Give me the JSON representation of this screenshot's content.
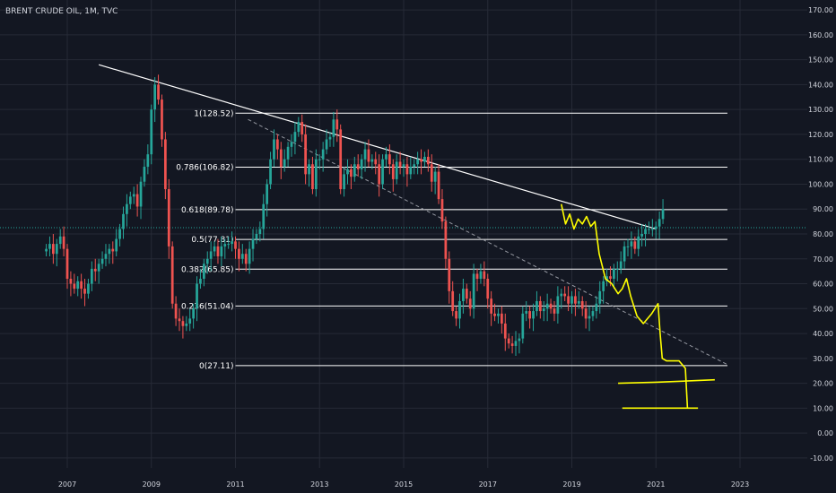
{
  "title": "BRENT CRUDE OIL, 1M, TVC",
  "colors": {
    "background": "#131722",
    "grid": "#262a36",
    "up": "#26a69a",
    "down": "#ef5350",
    "fib": "#ffffff",
    "trendline": "#ffffff",
    "diag": "#9598a1",
    "current": "#26a69a",
    "sketch": "#ffff00",
    "text": "#d1d4dc"
  },
  "chart_data": {
    "type": "candlestick",
    "x_range": [
      2005.4,
      2024.6
    ],
    "ylim": [
      -14,
      174
    ],
    "y_ticks": [
      "-10.00",
      "0.00",
      "10.00",
      "20.00",
      "30.00",
      "40.00",
      "50.00",
      "60.00",
      "70.00",
      "80.00",
      "90.00",
      "100.00",
      "110.00",
      "120.00",
      "130.00",
      "140.00",
      "150.00",
      "160.00",
      "170.00"
    ],
    "x_ticks": [
      {
        "label": "2007",
        "year": 2007
      },
      {
        "label": "2009",
        "year": 2009
      },
      {
        "label": "2011",
        "year": 2011
      },
      {
        "label": "2013",
        "year": 2013
      },
      {
        "label": "2015",
        "year": 2015
      },
      {
        "label": "2017",
        "year": 2017
      },
      {
        "label": "2019",
        "year": 2019
      },
      {
        "label": "2021",
        "year": 2021
      },
      {
        "label": "2023",
        "year": 2023
      }
    ],
    "current_price": 82.5,
    "fib_levels": [
      {
        "label": "1(128.52)",
        "value": 128.52
      },
      {
        "label": "0.786(106.82)",
        "value": 106.82
      },
      {
        "label": "0.618(89.78)",
        "value": 89.78
      },
      {
        "label": "0.5(77.81)",
        "value": 77.81
      },
      {
        "label": "0.382(65.85)",
        "value": 65.85
      },
      {
        "label": "0.236(51.04)",
        "value": 51.04
      },
      {
        "label": "0(27.11)",
        "value": 27.11
      }
    ],
    "fib_range": [
      2011.0,
      2022.7
    ],
    "trendline": [
      [
        2007.75,
        148
      ],
      [
        2021.0,
        82
      ]
    ],
    "diag_line": [
      [
        2011.3,
        126
      ],
      [
        2022.7,
        27.5
      ]
    ],
    "sketch_path": [
      [
        2018.75,
        92
      ],
      [
        2018.85,
        84
      ],
      [
        2018.95,
        88
      ],
      [
        2019.05,
        82
      ],
      [
        2019.15,
        86
      ],
      [
        2019.25,
        84
      ],
      [
        2019.35,
        87
      ],
      [
        2019.45,
        83
      ],
      [
        2019.55,
        85
      ],
      [
        2019.65,
        72
      ],
      [
        2019.8,
        62
      ],
      [
        2019.95,
        60
      ],
      [
        2020.1,
        56
      ],
      [
        2020.2,
        58
      ],
      [
        2020.3,
        62
      ],
      [
        2020.4,
        55
      ],
      [
        2020.55,
        47
      ],
      [
        2020.7,
        44
      ],
      [
        2020.9,
        48
      ],
      [
        2021.05,
        52
      ],
      [
        2021.1,
        40
      ],
      [
        2021.15,
        30
      ],
      [
        2021.25,
        29
      ],
      [
        2021.55,
        29
      ],
      [
        2021.7,
        26
      ],
      [
        2021.75,
        10
      ]
    ],
    "sketch_hlines": [
      [
        [
          2020.1,
          20
        ],
        [
          2021.0,
          20.4
        ],
        [
          2022.4,
          21.4
        ]
      ],
      [
        [
          2020.2,
          10
        ],
        [
          2022.0,
          10
        ]
      ]
    ],
    "candles_from_year": 2006.5,
    "closes": [
      74,
      76,
      72,
      76,
      79,
      74,
      62,
      60,
      58,
      61,
      58,
      56,
      60,
      66,
      65,
      68,
      70,
      72,
      74,
      73,
      78,
      82,
      88,
      92,
      95,
      96,
      91,
      101,
      107,
      112,
      130,
      140,
      134,
      118,
      98,
      75,
      52,
      46,
      45,
      43,
      44,
      46,
      50,
      60,
      62,
      68,
      70,
      73,
      75,
      71,
      75,
      76,
      76,
      77,
      74,
      70,
      72,
      68,
      74,
      78,
      80,
      82,
      92,
      100,
      110,
      118,
      114,
      107,
      110,
      115,
      117,
      121,
      125,
      120,
      104,
      108,
      98,
      110,
      110,
      114,
      118,
      119,
      126,
      122,
      98,
      104,
      106,
      103,
      108,
      106,
      110,
      114,
      109,
      110,
      108,
      100,
      110,
      112,
      108,
      102,
      109,
      107,
      108,
      104,
      107,
      108,
      110,
      109,
      111,
      108,
      101,
      105,
      94,
      85,
      70,
      57,
      49,
      46,
      53,
      58,
      54,
      50,
      64,
      62,
      65,
      62,
      54,
      48,
      47,
      48,
      44,
      38,
      36,
      35,
      37,
      38,
      48,
      49,
      46,
      49,
      53,
      49,
      50,
      52,
      50,
      48,
      55,
      56,
      55,
      52,
      55,
      52,
      53,
      50,
      46,
      47,
      49,
      52,
      57,
      61,
      63,
      62,
      66,
      66,
      69,
      75,
      75,
      77,
      74,
      79,
      80,
      82,
      82,
      82,
      83,
      86,
      90
    ]
  }
}
